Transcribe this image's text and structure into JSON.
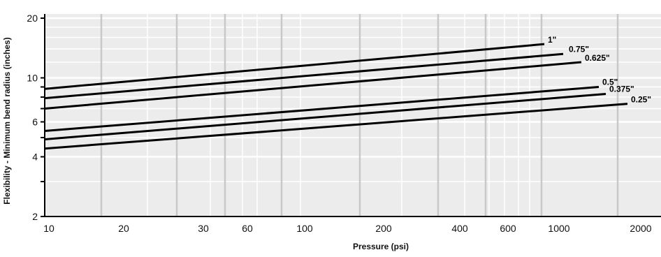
{
  "chart_data": {
    "type": "line",
    "title": "",
    "xlabel": "Pressure (psi)",
    "ylabel": "Flexibility - Minimum bend radius (inches)",
    "y_scale": "log",
    "ylim": [
      2,
      21
    ],
    "y_ticks": [
      "2",
      "4",
      "6",
      "10",
      "20"
    ],
    "x_tick_labels": [
      "10",
      "20",
      "30",
      "60",
      "100",
      "200",
      "400",
      "600",
      "1000",
      "2000"
    ],
    "series": [
      {
        "name": "1\"",
        "values": [
          8.8,
          14.8
        ]
      },
      {
        "name": "0.75\"",
        "values": [
          7.9,
          13.2
        ]
      },
      {
        "name": "0.625\"",
        "values": [
          7.0,
          12.0
        ]
      },
      {
        "name": "0.5\"",
        "values": [
          5.4,
          9.0
        ]
      },
      {
        "name": "0.375\"",
        "values": [
          4.9,
          8.3
        ]
      },
      {
        "name": "0.25\"",
        "values": [
          4.4,
          7.4
        ]
      }
    ],
    "grid": true,
    "legend": "labels at right end of each line"
  },
  "colors": {
    "plot_background": "#ececec",
    "grid_major": "#ffffff",
    "grid_minor_vertical": "#c8c8c8",
    "line": "#000000"
  }
}
